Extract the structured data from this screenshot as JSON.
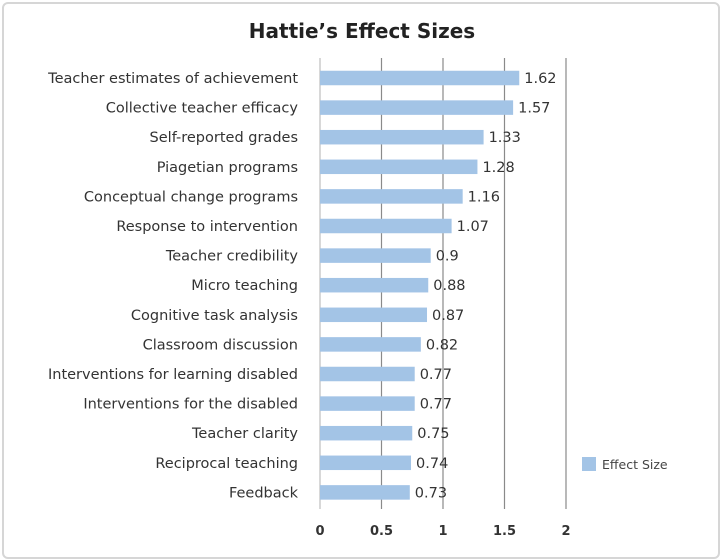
{
  "chart_data": {
    "type": "bar",
    "orientation": "horizontal",
    "title": "Hattie’s Effect Sizes",
    "xlabel": "",
    "ylabel": "",
    "categories": [
      "Teacher estimates of achievement",
      "Collective teacher efficacy",
      "Self-reported grades",
      "Piagetian programs",
      "Conceptual change programs",
      "Response to intervention",
      "Teacher credibility",
      "Micro teaching",
      "Cognitive task analysis",
      "Classroom discussion",
      "Interventions for learning disabled",
      "Interventions for the disabled",
      "Teacher clarity",
      "Reciprocal teaching",
      "Feedback"
    ],
    "series": [
      {
        "name": "Effect Size",
        "values": [
          1.62,
          1.57,
          1.33,
          1.28,
          1.16,
          1.07,
          0.9,
          0.88,
          0.87,
          0.82,
          0.77,
          0.77,
          0.75,
          0.74,
          0.73
        ]
      }
    ],
    "xlim": [
      0,
      2
    ],
    "xticks": [
      "0",
      "0.5",
      "1",
      "1.5",
      "2"
    ],
    "grid": "vertical",
    "legend": "right",
    "bar_color": "#a3c4e6",
    "grid_color": "#8a8a8a"
  }
}
